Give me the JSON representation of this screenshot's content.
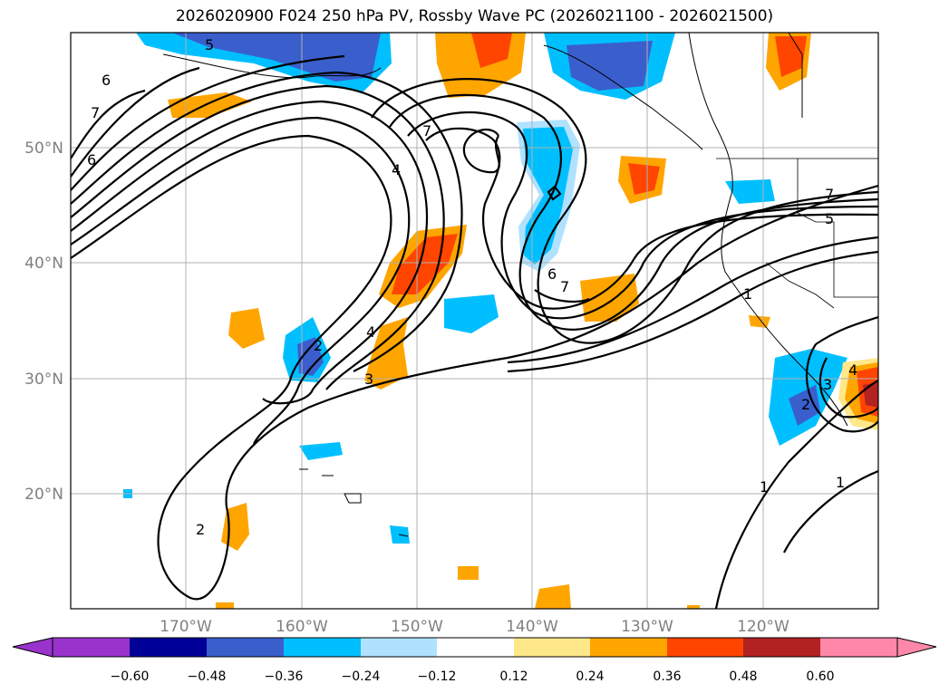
{
  "title": "2026020900 F024 250 hPa PV, Rossby Wave PC (2026021100 - 2026021500)",
  "map": {
    "projection": "equirectangular",
    "lon_range": [
      -180,
      -110
    ],
    "lat_range": [
      10,
      60
    ],
    "gridlines": true
  },
  "lat_ticks": [
    "20°N",
    "30°N",
    "40°N",
    "50°N"
  ],
  "lon_ticks": [
    "170°W",
    "160°W",
    "150°W",
    "140°W",
    "130°W",
    "120°W"
  ],
  "colorbar": {
    "extend": "both",
    "boundaries": [
      "−0.60",
      "−0.48",
      "−0.36",
      "−0.24",
      "−0.12",
      "0.12",
      "0.24",
      "0.36",
      "0.48",
      "0.60"
    ],
    "colors": [
      "#9933cc",
      "#000099",
      "#3a5fcd",
      "#00bfff",
      "#b0e2ff",
      "#ffffff",
      "#ffe88a",
      "#ffa500",
      "#ff4500",
      "#b22222",
      "#ff88aa"
    ]
  },
  "contour_labels": [
    "5",
    "6",
    "7",
    "6",
    "7",
    "4",
    "6",
    "7",
    "2",
    "4",
    "3",
    "1",
    "7",
    "5",
    "2",
    "3",
    "4",
    "1",
    "1",
    "2"
  ]
}
